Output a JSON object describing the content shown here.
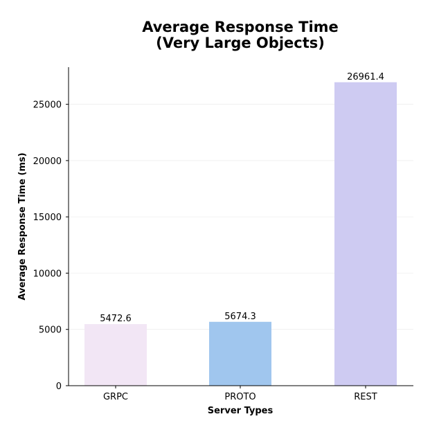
{
  "chart_data": {
    "type": "bar",
    "title_lines": [
      "Average Response Time",
      "(Very Large Objects)"
    ],
    "xlabel": "Server Types",
    "ylabel": "Average Response Time (ms)",
    "categories": [
      "GRPC",
      "PROTO",
      "REST"
    ],
    "values": [
      5472.6,
      5674.3,
      26961.4
    ],
    "value_labels": [
      "5472.6",
      "5674.3",
      "26961.4"
    ],
    "colors": [
      "#f2e6f5",
      "#a0c6ee",
      "#cecbf2"
    ],
    "ylim": [
      0,
      28300
    ],
    "yticks": [
      0,
      5000,
      10000,
      15000,
      20000,
      25000
    ],
    "grid": true
  }
}
